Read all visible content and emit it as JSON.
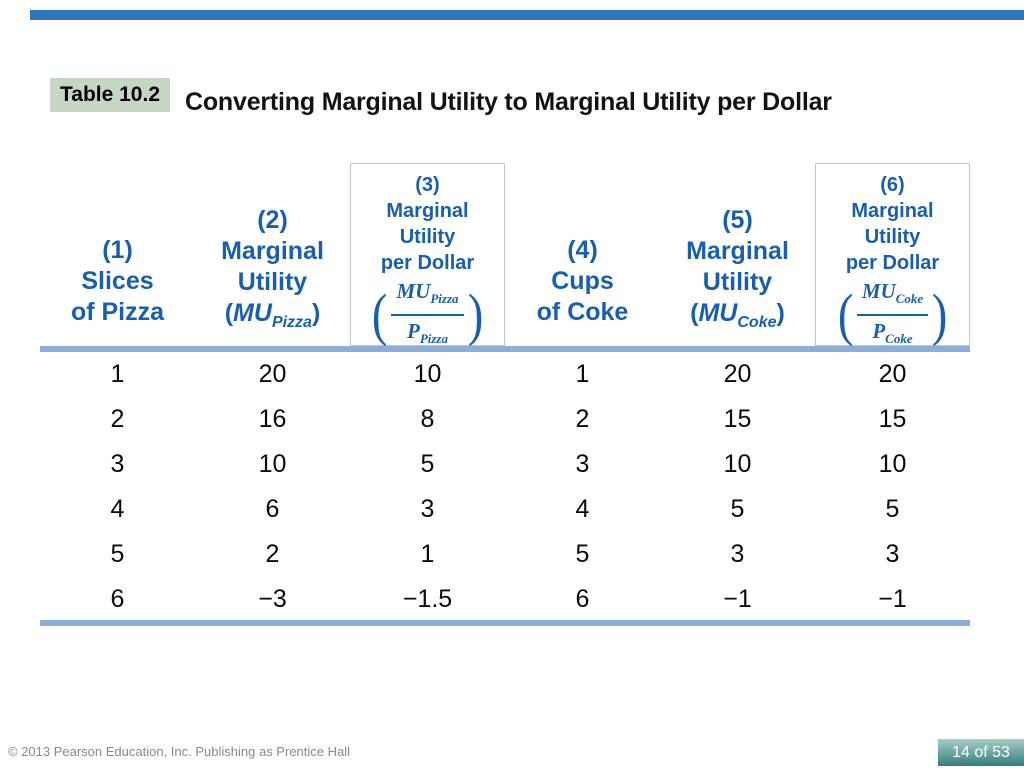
{
  "slide": {
    "badge": "Table 10.2",
    "title": "Converting Marginal Utility to Marginal Utility per Dollar",
    "footer": "© 2013 Pearson Education, Inc. Publishing as Prentice Hall",
    "page": "14 of 53"
  },
  "table": {
    "columns": [
      {
        "number": "(1)",
        "lines": [
          "Slices",
          "of Pizza"
        ]
      },
      {
        "number": "(2)",
        "lines": [
          "Marginal",
          "Utility"
        ],
        "symbol": {
          "open": "(",
          "var": "MU",
          "sub": "Pizza",
          "close": ")"
        }
      },
      {
        "number": "(3)",
        "lines": [
          "Marginal",
          "Utility",
          "per Dollar"
        ],
        "fraction": {
          "open": "(",
          "num_var": "MU",
          "num_sub": "Pizza",
          "den_var": "P",
          "den_sub": "Pizza",
          "close": ")"
        }
      },
      {
        "number": "(4)",
        "lines": [
          "Cups",
          "of Coke"
        ]
      },
      {
        "number": "(5)",
        "lines": [
          "Marginal",
          "Utility"
        ],
        "symbol": {
          "open": "(",
          "var": "MU",
          "sub": "Coke",
          "close": ")"
        }
      },
      {
        "number": "(6)",
        "lines": [
          "Marginal",
          "Utility",
          "per Dollar"
        ],
        "fraction": {
          "open": "(",
          "num_var": "MU",
          "num_sub": "Coke",
          "den_var": "P",
          "den_sub": "Coke",
          "close": ")"
        }
      }
    ],
    "rows": [
      [
        "1",
        "20",
        "10",
        "1",
        "20",
        "20"
      ],
      [
        "2",
        "16",
        "8",
        "2",
        "15",
        "15"
      ],
      [
        "3",
        "10",
        "5",
        "3",
        "10",
        "10"
      ],
      [
        "4",
        "6",
        "3",
        "4",
        "5",
        "5"
      ],
      [
        "5",
        "2",
        "1",
        "5",
        "3",
        "3"
      ],
      [
        "6",
        "−3",
        "−1.5",
        "6",
        "−1",
        "−1"
      ]
    ]
  },
  "colors": {
    "top_bar_blue": "#3075BB",
    "badge_green": "#C5D6C4",
    "header_blue": "#1A5FA8",
    "rule_blue": "#8EAEDA",
    "box_border": "#C4C4C4",
    "footer_gray": "#8A8A8A",
    "page_grad_top": "#A8CCC6",
    "page_grad_bottom": "#357F7D"
  }
}
